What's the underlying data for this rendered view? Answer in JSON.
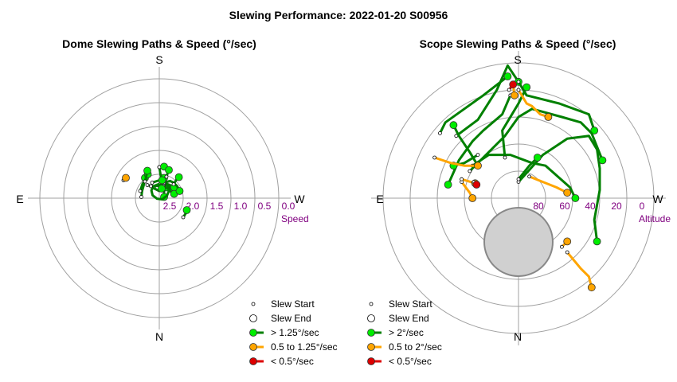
{
  "chart_data": {
    "type": "polar",
    "title": "Slewing Performance: 2022-01-20 S00956",
    "panels": [
      {
        "title": "Dome Slewing Paths & Speed (°/sec)",
        "compass": {
          "top": "S",
          "bottom": "N",
          "left": "E",
          "right": "W"
        },
        "radial_axis_label": "Speed",
        "radial_range": [
          0,
          3.0
        ],
        "radial_ticks": [
          "2.5",
          "2.0",
          "1.5",
          "1.0",
          "0.5",
          "0.0"
        ],
        "legend": [
          {
            "label": "Slew Start",
            "marker": "small-circle"
          },
          {
            "label": "Slew End",
            "marker": "open-circle"
          },
          {
            "label": "> 1.25°/sec",
            "color": "#00ee00"
          },
          {
            "label": "0.5 to 1.25°/sec",
            "color": "#ffa500"
          },
          {
            "label": "< 0.5°/sec",
            "color": "#dd0000"
          }
        ],
        "slews": [
          {
            "category": "fast",
            "points": [
              [
                -0.1,
                0.42
              ],
              [
                0.05,
                0.55
              ],
              [
                0.25,
                0.62
              ],
              [
                0.45,
                0.55
              ],
              [
                0.6,
                0.4
              ]
            ]
          },
          {
            "category": "fast",
            "points": [
              [
                0.05,
                0.62
              ],
              [
                0.2,
                0.3
              ],
              [
                0.2,
                0.05
              ]
            ]
          },
          {
            "category": "fast",
            "points": [
              [
                -0.5,
                0.55
              ],
              [
                -0.3,
                0.5
              ],
              [
                -0.05,
                0.52
              ],
              [
                0.12,
                0.5
              ],
              [
                0.3,
                0.45
              ]
            ]
          },
          {
            "category": "fast",
            "points": [
              [
                -0.75,
                0.05
              ],
              [
                -0.72,
                0.3
              ],
              [
                -0.65,
                0.55
              ],
              [
                -0.6,
                0.85
              ]
            ]
          },
          {
            "category": "fast",
            "points": [
              [
                -0.8,
                0.3
              ],
              [
                -0.7,
                0.6
              ],
              [
                -0.55,
                0.8
              ],
              [
                -0.48,
                1.0
              ]
            ]
          },
          {
            "category": "fast",
            "points": [
              [
                -0.6,
                0.7
              ],
              [
                -0.55,
                0.9
              ],
              [
                -0.5,
                1.15
              ]
            ]
          },
          {
            "category": "fast",
            "points": [
              [
                0.15,
                0.55
              ],
              [
                0.3,
                0.55
              ],
              [
                0.5,
                0.5
              ],
              [
                0.62,
                0.45
              ]
            ]
          },
          {
            "category": "fast",
            "points": [
              [
                0.2,
                0.6
              ],
              [
                0.3,
                0.62
              ],
              [
                0.38,
                0.5
              ],
              [
                0.4,
                0.3
              ],
              [
                0.32,
                0.1
              ],
              [
                0.12,
                -0.05
              ],
              [
                -0.1,
                -0.02
              ],
              [
                -0.28,
                0.12
              ],
              [
                -0.33,
                0.32
              ],
              [
                -0.25,
                0.5
              ],
              [
                -0.05,
                0.58
              ],
              [
                0.18,
                0.52
              ],
              [
                0.38,
                0.38
              ],
              [
                0.5,
                0.25
              ],
              [
                0.62,
                0.18
              ]
            ]
          },
          {
            "category": "fast",
            "points": [
              [
                0.2,
                0.65
              ],
              [
                0.45,
                0.72
              ],
              [
                0.6,
                0.65
              ],
              [
                0.75,
                0.5
              ],
              [
                0.85,
                0.3
              ]
            ]
          },
          {
            "category": "fast",
            "points": [
              [
                -0.35,
                0.5
              ],
              [
                -0.2,
                0.4
              ],
              [
                0.0,
                0.3
              ],
              [
                0.1,
                0.4
              ]
            ]
          },
          {
            "category": "fast",
            "points": [
              [
                0.6,
                0.58
              ],
              [
                0.7,
                0.75
              ],
              [
                0.82,
                0.88
              ]
            ]
          },
          {
            "category": "fast",
            "points": [
              [
                -0.3,
                0.65
              ],
              [
                0.0,
                0.75
              ],
              [
                0.2,
                0.85
              ]
            ]
          },
          {
            "category": "fast",
            "points": [
              [
                0.0,
                1.3
              ],
              [
                0.05,
                1.0
              ],
              [
                0.12,
                0.75
              ]
            ]
          },
          {
            "category": "fast",
            "points": [
              [
                0.0,
                1.3
              ],
              [
                0.2,
                1.32
              ]
            ]
          },
          {
            "category": "fast",
            "points": [
              [
                0.3,
                0.9
              ],
              [
                0.35,
                1.05
              ],
              [
                0.4,
                1.18
              ]
            ]
          },
          {
            "category": "fast",
            "points": [
              [
                1.0,
                -0.8
              ],
              [
                1.1,
                -0.65
              ],
              [
                1.15,
                -0.5
              ]
            ]
          },
          {
            "category": "medium",
            "points": [
              [
                -1.5,
                0.75
              ],
              [
                -1.4,
                0.85
              ]
            ]
          }
        ]
      },
      {
        "title": "Scope Slewing Paths & Speed (°/sec)",
        "compass": {
          "top": "S",
          "bottom": "N",
          "left": "E",
          "right": "W"
        },
        "radial_axis_label": "Altitude",
        "radial_range": [
          100,
          0
        ],
        "radial_ticks": [
          "80",
          "60",
          "40",
          "20",
          "0"
        ],
        "zenith_region": {
          "center_altitude": 65,
          "radius_deg": 15
        },
        "legend": [
          {
            "label": "Slew Start",
            "marker": "small-circle"
          },
          {
            "label": "Slew End",
            "marker": "open-circle"
          },
          {
            "label": "> 2°/sec",
            "color": "#00ee00"
          },
          {
            "label": "0.5 to 2°/sec",
            "color": "#ffa500"
          },
          {
            "label": "< 0.5°/sec",
            "color": "#dd0000"
          }
        ],
        "slews": [
          {
            "category": "fast",
            "points": [
              [
                -2.3,
                2.3
              ],
              [
                -1.5,
                2.9
              ],
              [
                -0.8,
                4.0
              ],
              [
                -0.4,
                4.9
              ],
              [
                0.0,
                4.3
              ]
            ]
          },
          {
            "category": "fast",
            "points": [
              [
                0.0,
                4.3
              ],
              [
                0.3,
                3.8
              ],
              [
                1.5,
                3.5
              ],
              [
                2.6,
                3.1
              ],
              [
                2.8,
                2.5
              ]
            ]
          },
          {
            "category": "fast",
            "points": [
              [
                -0.3,
                3.8
              ],
              [
                -0.6,
                3.1
              ],
              [
                -1.3,
                2.5
              ],
              [
                -1.7,
                2.1
              ],
              [
                -2.2,
                1.4
              ],
              [
                -2.6,
                0.5
              ]
            ]
          },
          {
            "category": "fast",
            "points": [
              [
                0.0,
                0.6
              ],
              [
                0.9,
                1.6
              ],
              [
                1.8,
                2.2
              ],
              [
                2.6,
                2.3
              ],
              [
                2.9,
                1.8
              ],
              [
                3.0,
                1.1
              ],
              [
                3.0,
                0.3
              ],
              [
                2.8,
                -0.8
              ],
              [
                2.9,
                -1.6
              ]
            ]
          },
          {
            "category": "fast",
            "points": [
              [
                -1.7,
                1.2
              ],
              [
                -1.1,
                1.6
              ],
              [
                -0.3,
                1.6
              ],
              [
                0.5,
                1.3
              ],
              [
                1.0,
                1.2
              ],
              [
                1.9,
                0.4
              ],
              [
                2.1,
                0.0
              ]
            ]
          },
          {
            "category": "fast",
            "points": [
              [
                -1.8,
                1.0
              ],
              [
                -0.5,
                2.3
              ],
              [
                0.0,
                3.0
              ],
              [
                0.5,
                3.3
              ],
              [
                1.6,
                3.0
              ],
              [
                2.3,
                2.8
              ],
              [
                2.7,
                2.4
              ],
              [
                3.1,
                1.4
              ]
            ]
          },
          {
            "category": "fast",
            "points": [
              [
                -2.9,
                2.4
              ],
              [
                -2.7,
                2.8
              ],
              [
                -2.0,
                3.3
              ],
              [
                -1.3,
                3.8
              ],
              [
                -0.4,
                4.5
              ]
            ]
          },
          {
            "category": "fast",
            "points": [
              [
                0.0,
                0.7
              ],
              [
                0.4,
                1.2
              ],
              [
                0.7,
                1.5
              ]
            ]
          },
          {
            "category": "fast",
            "points": [
              [
                -1.5,
                1.2
              ],
              [
                -1.8,
                1.7
              ],
              [
                -2.2,
                2.3
              ],
              [
                -2.4,
                2.7
              ]
            ]
          },
          {
            "category": "fast",
            "points": [
              [
                -0.5,
                1.5
              ],
              [
                -0.6,
                2.5
              ],
              [
                0.0,
                3.5
              ],
              [
                0.3,
                4.1
              ]
            ]
          },
          {
            "category": "fast",
            "points": [
              [
                -1.5,
                1.6
              ],
              [
                -2.0,
                1.3
              ],
              [
                -2.4,
                1.2
              ]
            ]
          },
          {
            "category": "medium",
            "points": [
              [
                -3.1,
                1.5
              ],
              [
                -2.5,
                1.3
              ],
              [
                -2.0,
                1.2
              ],
              [
                -1.5,
                1.2
              ]
            ]
          },
          {
            "category": "medium",
            "points": [
              [
                -2.1,
                0.6
              ],
              [
                -1.8,
                0.2
              ],
              [
                -1.7,
                0.0
              ]
            ]
          },
          {
            "category": "medium",
            "points": [
              [
                -2.1,
                0.7
              ],
              [
                -1.6,
                0.55
              ]
            ]
          },
          {
            "category": "medium",
            "points": [
              [
                0.0,
                4.0
              ],
              [
                0.3,
                3.5
              ],
              [
                0.5,
                3.4
              ],
              [
                0.8,
                3.1
              ],
              [
                1.1,
                3.0
              ]
            ]
          },
          {
            "category": "medium",
            "points": [
              [
                -0.2,
                4.2
              ],
              [
                -0.15,
                3.8
              ]
            ]
          },
          {
            "category": "medium",
            "points": [
              [
                0.4,
                0.8
              ],
              [
                0.9,
                0.6
              ],
              [
                1.4,
                0.4
              ],
              [
                1.8,
                0.2
              ]
            ]
          },
          {
            "category": "medium",
            "points": [
              [
                1.8,
                -2.0
              ],
              [
                2.3,
                -2.6
              ],
              [
                2.6,
                -2.9
              ],
              [
                2.7,
                -3.3
              ]
            ]
          },
          {
            "category": "medium",
            "points": [
              [
                1.6,
                -1.8
              ],
              [
                1.8,
                -1.6
              ]
            ]
          },
          {
            "category": "slow",
            "points": [
              [
                -0.35,
                4.0
              ],
              [
                -0.2,
                4.2
              ]
            ]
          },
          {
            "category": "slow",
            "points": [
              [
                -1.65,
                0.6
              ],
              [
                -1.55,
                0.5
              ]
            ]
          }
        ]
      }
    ]
  }
}
